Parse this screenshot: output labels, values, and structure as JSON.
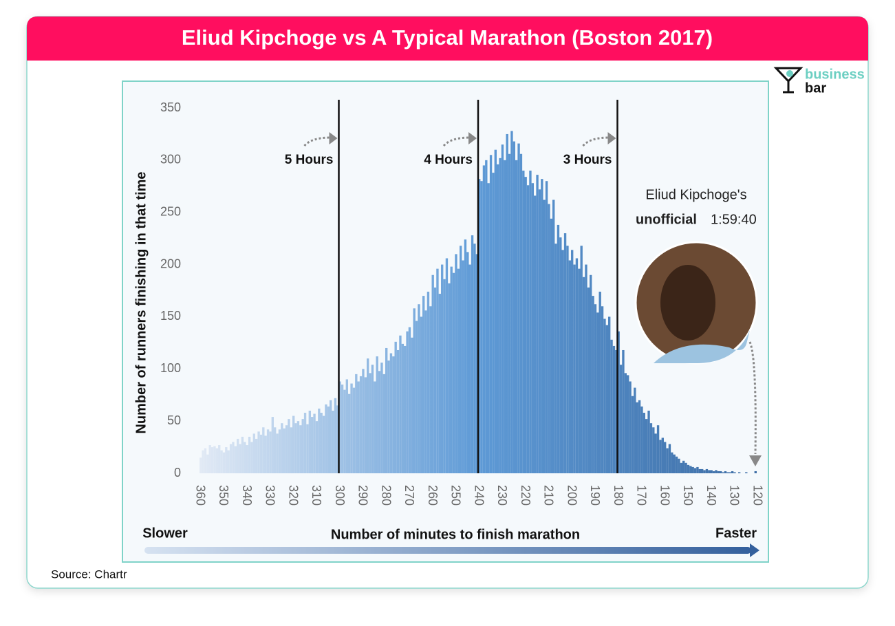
{
  "chart_data": {
    "type": "histogram",
    "title": "Eliud Kipchoge vs A Typical Marathon (Boston 2017)",
    "y_label": "Number of runners finishing in that time",
    "x_label": "Number of minutes to finish marathon",
    "left_caption": "Slower",
    "right_caption": "Faster",
    "source": "Source: Chartr",
    "brand": [
      "business",
      "bar"
    ],
    "note": [
      "Eliud Kipchoge's",
      "unofficial",
      "1:59:40"
    ],
    "markers": [
      {
        "x": 300,
        "label": "5 Hours"
      },
      {
        "x": 240,
        "label": "4 Hours"
      },
      {
        "x": 180,
        "label": "3 Hours"
      }
    ],
    "gradient": [
      "#e2eaf5",
      "#5e9ad6",
      "#3d6da5"
    ],
    "xlim": [
      360,
      120
    ],
    "ylim": [
      0,
      350
    ],
    "xticks": [
      360,
      350,
      340,
      330,
      320,
      310,
      300,
      290,
      280,
      270,
      260,
      250,
      240,
      230,
      220,
      210,
      200,
      190,
      180,
      170,
      160,
      150,
      140,
      130,
      120
    ],
    "yticks": [
      0,
      50,
      100,
      150,
      200,
      250,
      300,
      350
    ],
    "bins": [
      360,
      359,
      358,
      357,
      356,
      355,
      354,
      353,
      352,
      351,
      350,
      349,
      348,
      347,
      346,
      345,
      344,
      343,
      342,
      341,
      340,
      339,
      338,
      337,
      336,
      335,
      334,
      333,
      332,
      331,
      330,
      329,
      328,
      327,
      326,
      325,
      324,
      323,
      322,
      321,
      320,
      319,
      318,
      317,
      316,
      315,
      314,
      313,
      312,
      311,
      310,
      309,
      308,
      307,
      306,
      305,
      304,
      303,
      302,
      301,
      300,
      299,
      298,
      297,
      296,
      295,
      294,
      293,
      292,
      291,
      290,
      289,
      288,
      287,
      286,
      285,
      284,
      283,
      282,
      281,
      280,
      279,
      278,
      277,
      276,
      275,
      274,
      273,
      272,
      271,
      270,
      269,
      268,
      267,
      266,
      265,
      264,
      263,
      262,
      261,
      260,
      259,
      258,
      257,
      256,
      255,
      254,
      253,
      252,
      251,
      250,
      249,
      248,
      247,
      246,
      245,
      244,
      243,
      242,
      241,
      240,
      239,
      238,
      237,
      236,
      235,
      234,
      233,
      232,
      231,
      230,
      229,
      228,
      227,
      226,
      225,
      224,
      223,
      222,
      221,
      220,
      219,
      218,
      217,
      216,
      215,
      214,
      213,
      212,
      211,
      210,
      209,
      208,
      207,
      206,
      205,
      204,
      203,
      202,
      201,
      200,
      199,
      198,
      197,
      196,
      195,
      194,
      193,
      192,
      191,
      190,
      189,
      188,
      187,
      186,
      185,
      184,
      183,
      182,
      181,
      180,
      179,
      178,
      177,
      176,
      175,
      174,
      173,
      172,
      171,
      170,
      169,
      168,
      167,
      166,
      165,
      164,
      163,
      162,
      161,
      160,
      159,
      158,
      157,
      156,
      155,
      154,
      153,
      152,
      151,
      150,
      149,
      148,
      147,
      146,
      145,
      144,
      143,
      142,
      141,
      140,
      139,
      138,
      137,
      136,
      135,
      134,
      133,
      132,
      131,
      130,
      129,
      128,
      127,
      126,
      125,
      124,
      123,
      122,
      121,
      120
    ],
    "values": [
      15,
      22,
      24,
      18,
      27,
      25,
      26,
      24,
      27,
      22,
      20,
      25,
      22,
      28,
      30,
      26,
      33,
      28,
      35,
      30,
      27,
      35,
      30,
      38,
      33,
      40,
      37,
      44,
      36,
      42,
      40,
      54,
      44,
      38,
      42,
      48,
      43,
      46,
      52,
      44,
      55,
      48,
      50,
      46,
      52,
      58,
      47,
      60,
      54,
      57,
      50,
      62,
      58,
      55,
      66,
      64,
      70,
      60,
      72,
      65,
      88,
      85,
      80,
      90,
      76,
      86,
      82,
      95,
      88,
      93,
      100,
      92,
      110,
      96,
      104,
      88,
      112,
      98,
      106,
      95,
      120,
      108,
      115,
      112,
      126,
      118,
      132,
      124,
      122,
      136,
      140,
      130,
      158,
      146,
      162,
      150,
      170,
      156,
      174,
      160,
      190,
      178,
      196,
      172,
      200,
      186,
      206,
      182,
      198,
      192,
      210,
      196,
      218,
      204,
      224,
      212,
      200,
      228,
      220,
      210,
      282,
      280,
      295,
      300,
      278,
      305,
      288,
      310,
      296,
      302,
      315,
      300,
      325,
      306,
      328,
      318,
      300,
      316,
      306,
      290,
      284,
      276,
      290,
      278,
      266,
      286,
      272,
      282,
      262,
      280,
      258,
      244,
      262,
      220,
      238,
      226,
      214,
      230,
      218,
      204,
      214,
      200,
      206,
      196,
      218,
      188,
      200,
      178,
      190,
      170,
      162,
      154,
      174,
      160,
      148,
      142,
      150,
      128,
      122,
      118,
      136,
      104,
      118,
      96,
      94,
      88,
      74,
      82,
      68,
      70,
      64,
      58,
      52,
      60,
      48,
      44,
      38,
      46,
      32,
      34,
      30,
      24,
      28,
      20,
      18,
      16,
      14,
      10,
      12,
      10,
      8,
      7,
      6,
      5,
      6,
      4,
      4,
      3,
      4,
      3,
      3,
      2,
      3,
      2,
      2,
      1,
      2,
      1,
      1,
      2,
      1,
      0,
      1,
      0,
      0,
      1,
      0,
      0,
      0,
      2
    ]
  }
}
